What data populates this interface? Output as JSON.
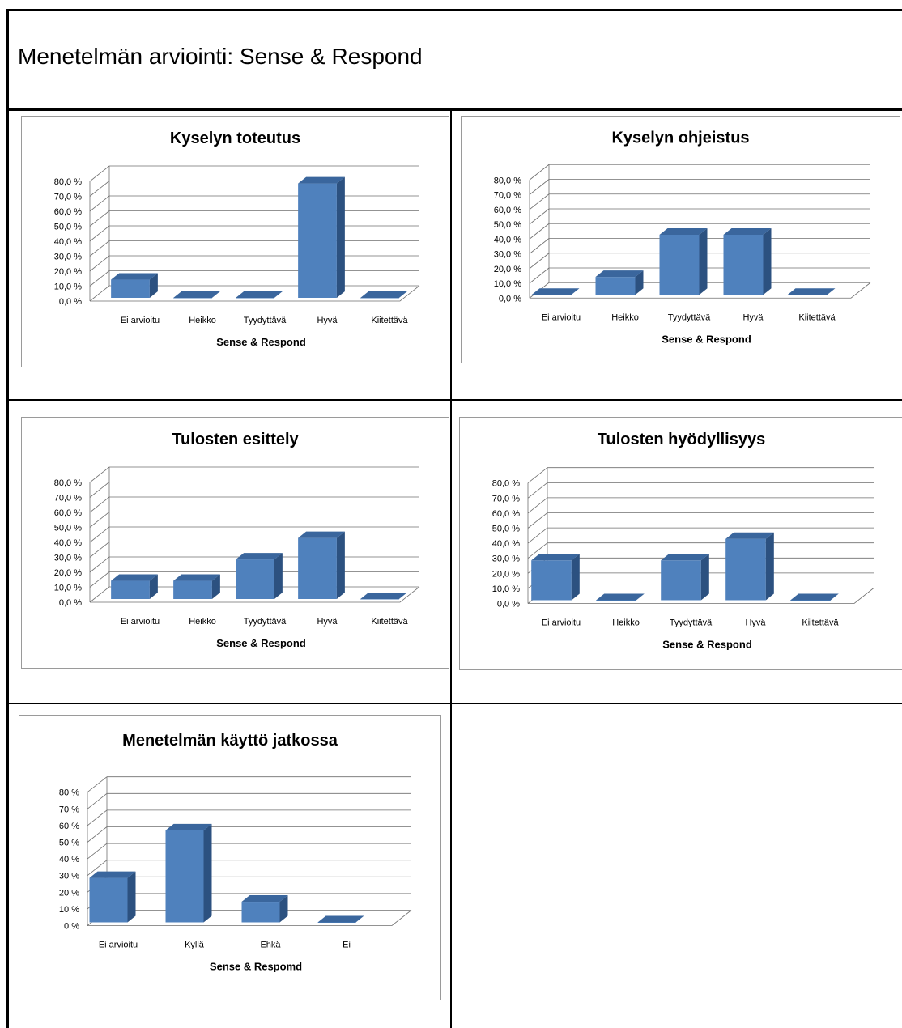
{
  "document": {
    "title": "Menetelmän arviointi: Sense & Respond"
  },
  "colors": {
    "bar_front": "#4f81bd",
    "bar_side": "#2c5180",
    "bar_top": "#3a669d",
    "grid": "#6f6f6f",
    "border": "#000000"
  },
  "chart_data": [
    {
      "type": "bar",
      "title": "Kyselyn toteutus",
      "xlabel": "Sense & Respond",
      "ylabel": "",
      "categories": [
        "Ei arvioitu",
        "Heikko",
        "Tyydyttävä",
        "Hyvä",
        "Kiitettävä"
      ],
      "values": [
        14.3,
        0,
        0,
        78.6,
        0
      ],
      "ylim": [
        0,
        80
      ],
      "ticks": [
        "0,0 %",
        "10,0 %",
        "20,0 %",
        "30,0 %",
        "40,0 %",
        "50,0 %",
        "60,0 %",
        "70,0 %",
        "80,0 %"
      ],
      "grid": true,
      "style": "3d-column"
    },
    {
      "type": "bar",
      "title": "Kyselyn ohjeistus",
      "xlabel": "Sense & Respond",
      "ylabel": "",
      "categories": [
        "Ei arvioitu",
        "Heikko",
        "Tyydyttävä",
        "Hyvä",
        "Kiitettävä"
      ],
      "values": [
        0,
        14.3,
        42.9,
        42.9,
        0
      ],
      "ylim": [
        0,
        80
      ],
      "ticks": [
        "0,0 %",
        "10,0 %",
        "20,0 %",
        "30,0 %",
        "40,0 %",
        "50,0 %",
        "60,0 %",
        "70,0 %",
        "80,0 %"
      ],
      "grid": true,
      "style": "3d-column"
    },
    {
      "type": "bar",
      "title": "Tulosten esittely",
      "xlabel": "Sense & Respond",
      "ylabel": "",
      "categories": [
        "Ei arvioitu",
        "Heikko",
        "Tyydyttävä",
        "Hyvä",
        "Kiitettävä"
      ],
      "values": [
        14.3,
        14.3,
        28.6,
        42.9,
        0
      ],
      "ylim": [
        0,
        80
      ],
      "ticks": [
        "0,0 %",
        "10,0 %",
        "20,0 %",
        "30,0 %",
        "40,0 %",
        "50,0 %",
        "60,0 %",
        "70,0 %",
        "80,0 %"
      ],
      "grid": true,
      "style": "3d-column"
    },
    {
      "type": "bar",
      "title": "Tulosten hyödyllisyys",
      "xlabel": "Sense & Respond",
      "ylabel": "",
      "categories": [
        "Ei arvioitu",
        "Heikko",
        "Tyydyttävä",
        "Hyvä",
        "Kiitettävä"
      ],
      "values": [
        28.6,
        0,
        28.6,
        42.9,
        0
      ],
      "ylim": [
        0,
        80
      ],
      "ticks": [
        "0,0 %",
        "10,0 %",
        "20,0 %",
        "30,0 %",
        "40,0 %",
        "50,0 %",
        "60,0 %",
        "70,0 %",
        "80,0 %"
      ],
      "grid": true,
      "style": "3d-column"
    },
    {
      "type": "bar",
      "title": "Menetelmän käyttö jatkossa",
      "xlabel": "Sense & Respomd",
      "ylabel": "",
      "categories": [
        "Ei arvioitu",
        "Kyllä",
        "Ehkä",
        "Ei"
      ],
      "values": [
        28.6,
        57.1,
        14.3,
        0
      ],
      "ylim": [
        0,
        80
      ],
      "ticks": [
        "0 %",
        "10 %",
        "20 %",
        "30 %",
        "40 %",
        "50 %",
        "60 %",
        "70 %",
        "80 %"
      ],
      "grid": true,
      "style": "3d-column"
    }
  ]
}
